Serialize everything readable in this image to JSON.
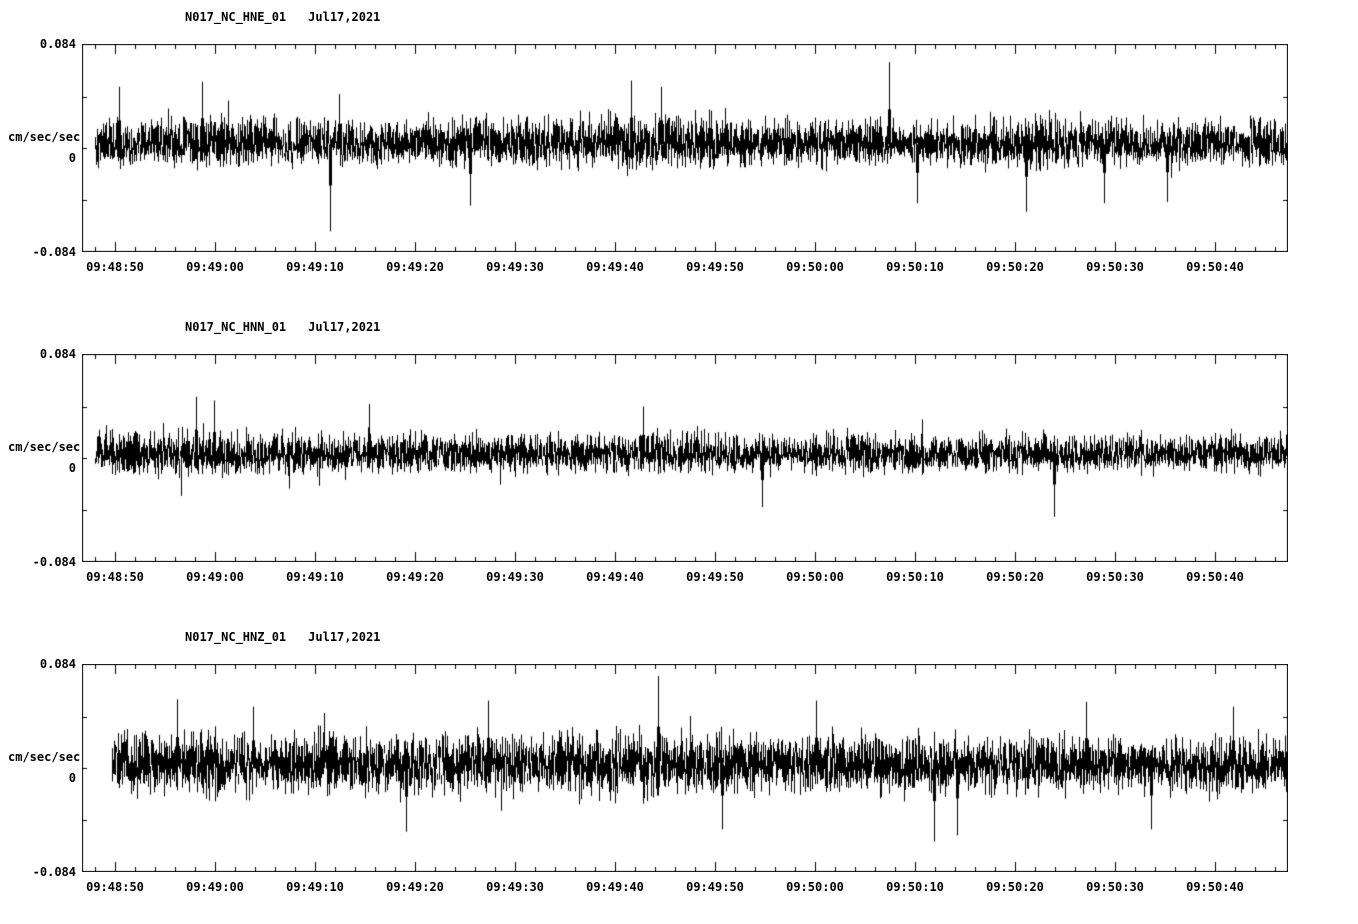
{
  "page": {
    "background": "#ffffff",
    "trace_color": "#000000"
  },
  "chart_data": {
    "type": "line",
    "chart_kind": "seismic-acceleration-waveform",
    "title": "",
    "xlabel": "",
    "ylabel": "cm/sec/sec",
    "ylim": [
      -0.084,
      0.084
    ],
    "grid": false,
    "legend": "none",
    "y_axis": {
      "top_label": "0.084",
      "zero_label": "0",
      "bottom_label": "-0.084",
      "units": "cm/sec/sec",
      "max": 0.084
    },
    "x_axis": {
      "labels": [
        "09:48:50",
        "09:49:00",
        "09:49:10",
        "09:49:20",
        "09:49:30",
        "09:49:40",
        "09:49:50",
        "09:50:00",
        "09:50:10",
        "09:50:20",
        "09:50:30",
        "09:50:40"
      ],
      "total_seconds": 120.6,
      "first_tick_seconds": 3.3,
      "major_tick_seconds": 10,
      "minor_tick_seconds": 2
    },
    "panels": [
      {
        "station": "N017_NC_HNE_01",
        "date": "Jul17,2021",
        "seed": 101,
        "start_frac": 0.011,
        "base_amp": 0.024,
        "bias": 0.003,
        "pos_scale": 1.15,
        "neg_scale": 0.92,
        "envelope": [
          1.15,
          1.05,
          1.25,
          1.1,
          1.0,
          1.15,
          1.05,
          1.1,
          1.2,
          1.15,
          1.25,
          1.3,
          1.2,
          1.1,
          1.05,
          1.1,
          1.0,
          1.05,
          1.25,
          1.15,
          1.05,
          0.95,
          1.0,
          1.05
        ],
        "spikes": [
          {
            "t": 0.02,
            "a": 0.05
          },
          {
            "t": 0.09,
            "a": 0.054
          },
          {
            "t": 0.197,
            "a": -0.068
          },
          {
            "t": 0.205,
            "a": 0.044
          },
          {
            "t": 0.315,
            "a": -0.047
          },
          {
            "t": 0.45,
            "a": 0.055
          },
          {
            "t": 0.475,
            "a": 0.05
          },
          {
            "t": 0.667,
            "a": 0.07
          },
          {
            "t": 0.69,
            "a": -0.045
          },
          {
            "t": 0.782,
            "a": -0.052
          },
          {
            "t": 0.847,
            "a": -0.045
          },
          {
            "t": 0.9,
            "a": -0.044
          }
        ]
      },
      {
        "station": "N017_NC_HNN_01",
        "date": "Jul17,2021",
        "seed": 202,
        "start_frac": 0.011,
        "base_amp": 0.021,
        "bias": 0.003,
        "pos_scale": 1.1,
        "neg_scale": 0.95,
        "envelope": [
          1.1,
          1.15,
          1.25,
          1.2,
          1.1,
          1.05,
          1.1,
          1.05,
          1.1,
          1.05,
          1.0,
          1.1,
          1.05,
          1.0,
          1.05,
          1.1,
          1.0,
          1.05,
          1.0,
          0.95,
          1.05,
          1.0,
          1.05,
          1.0
        ],
        "spikes": [
          {
            "t": 0.085,
            "a": 0.05
          },
          {
            "t": 0.1,
            "a": 0.047
          },
          {
            "t": 0.23,
            "a": 0.044
          },
          {
            "t": 0.46,
            "a": 0.042
          },
          {
            "t": 0.56,
            "a": -0.04
          },
          {
            "t": 0.805,
            "a": -0.048
          }
        ]
      },
      {
        "station": "N017_NC_HNZ_01",
        "date": "Jul17,2021",
        "seed": 303,
        "start_frac": 0.025,
        "base_amp": 0.028,
        "bias": 0.003,
        "pos_scale": 1.1,
        "neg_scale": 1.05,
        "envelope": [
          1.1,
          1.2,
          1.15,
          1.1,
          1.15,
          1.1,
          1.2,
          1.15,
          1.1,
          1.2,
          1.25,
          1.15,
          1.2,
          1.1,
          1.15,
          1.2,
          1.1,
          1.05,
          1.1,
          1.0,
          1.05,
          1.1,
          1.15,
          1.1
        ],
        "spikes": [
          {
            "t": 0.055,
            "a": 0.056
          },
          {
            "t": 0.12,
            "a": 0.05
          },
          {
            "t": 0.25,
            "a": -0.052
          },
          {
            "t": 0.32,
            "a": 0.055
          },
          {
            "t": 0.465,
            "a": 0.075
          },
          {
            "t": 0.52,
            "a": -0.05
          },
          {
            "t": 0.6,
            "a": 0.055
          },
          {
            "t": 0.7,
            "a": -0.06
          },
          {
            "t": 0.72,
            "a": -0.055
          },
          {
            "t": 0.83,
            "a": 0.054
          },
          {
            "t": 0.885,
            "a": -0.05
          },
          {
            "t": 0.955,
            "a": 0.05
          }
        ]
      }
    ]
  }
}
